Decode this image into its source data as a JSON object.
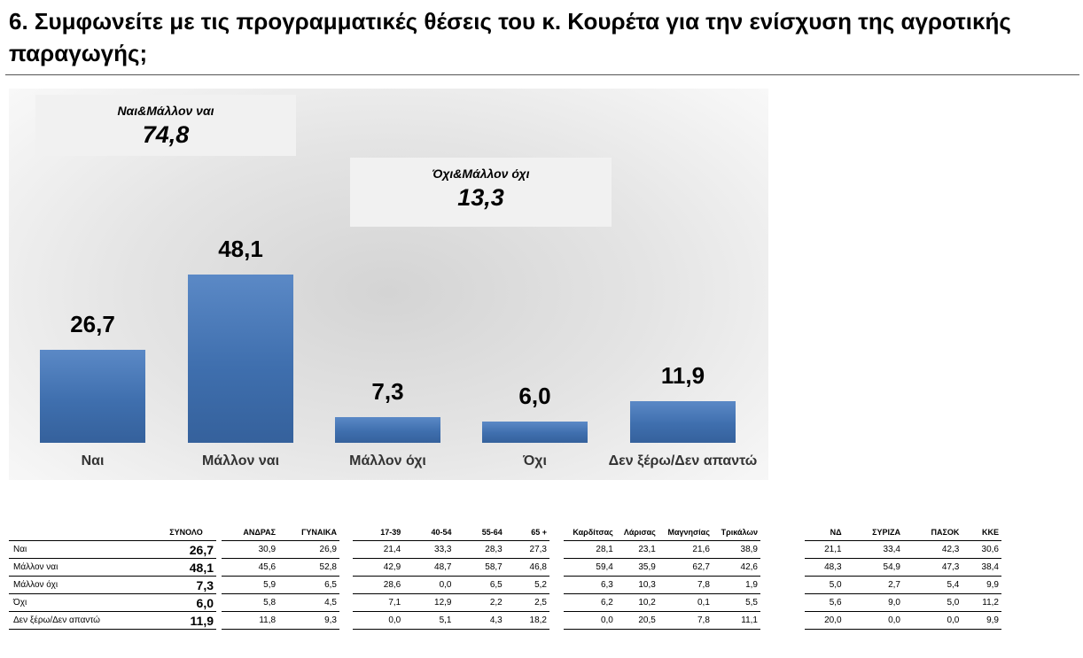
{
  "title": "6. Συμφωνείτε με τις προγραμματικές θέσεις του κ. Κουρέτα για την ενίσχυση της αγροτικής παραγωγής;",
  "summary": {
    "agree": {
      "label": "Ναι&Μάλλον ναι",
      "value": "74,8"
    },
    "disagree": {
      "label": "Όχι&Μάλλον όχι",
      "value": "13,3"
    }
  },
  "chart_data": {
    "type": "bar",
    "categories": [
      "Ναι",
      "Μάλλον ναι",
      "Μάλλον όχι",
      "Όχι",
      "Δεν ξέρω/Δεν απαντώ"
    ],
    "values": [
      26.7,
      48.1,
      7.3,
      6.0,
      11.9
    ],
    "value_labels": [
      "26,7",
      "48,1",
      "7,3",
      "6,0",
      "11,9"
    ],
    "ylim": [
      0,
      48.1
    ],
    "grid": false,
    "bar_color": "#4a7abc"
  },
  "table": {
    "rows": [
      "Ναι",
      "Μάλλον ναι",
      "Μάλλον όχι",
      "Όχι",
      "Δεν ξέρω/Δεν απαντώ"
    ],
    "total": {
      "header": "ΣΥΝΟΛΟ",
      "values": [
        "26,7",
        "48,1",
        "7,3",
        "6,0",
        "11,9"
      ]
    },
    "groups": [
      {
        "headers": [
          "ΑΝΔΡΑΣ",
          "ΓΥΝΑΙΚΑ"
        ],
        "rows": [
          [
            "30,9",
            "26,9"
          ],
          [
            "45,6",
            "52,8"
          ],
          [
            "5,9",
            "6,5"
          ],
          [
            "5,8",
            "4,5"
          ],
          [
            "11,8",
            "9,3"
          ]
        ]
      },
      {
        "headers": [
          "17-39",
          "40-54",
          "55-64",
          "65 +"
        ],
        "rows": [
          [
            "21,4",
            "33,3",
            "28,3",
            "27,3"
          ],
          [
            "42,9",
            "48,7",
            "58,7",
            "46,8"
          ],
          [
            "28,6",
            "0,0",
            "6,5",
            "5,2"
          ],
          [
            "7,1",
            "12,9",
            "2,2",
            "2,5"
          ],
          [
            "0,0",
            "5,1",
            "4,3",
            "18,2"
          ]
        ]
      },
      {
        "headers": [
          "Καρδίτσας",
          "Λάρισας",
          "Μαγνησίας",
          "Τρικάλων"
        ],
        "rows": [
          [
            "28,1",
            "23,1",
            "21,6",
            "38,9"
          ],
          [
            "59,4",
            "35,9",
            "62,7",
            "42,6"
          ],
          [
            "6,3",
            "10,3",
            "7,8",
            "1,9"
          ],
          [
            "6,2",
            "10,2",
            "0,1",
            "5,5"
          ],
          [
            "0,0",
            "20,5",
            "7,8",
            "11,1"
          ]
        ]
      },
      {
        "headers": [
          "ΝΔ",
          "ΣΥΡΙΖΑ",
          "ΠΑΣΟΚ",
          "ΚΚΕ"
        ],
        "rows": [
          [
            "21,1",
            "33,4",
            "42,3",
            "30,6"
          ],
          [
            "48,3",
            "54,9",
            "47,3",
            "38,4"
          ],
          [
            "5,0",
            "2,7",
            "5,4",
            "9,9"
          ],
          [
            "5,6",
            "9,0",
            "5,0",
            "11,2"
          ],
          [
            "20,0",
            "0,0",
            "0,0",
            "9,9"
          ]
        ]
      }
    ]
  }
}
